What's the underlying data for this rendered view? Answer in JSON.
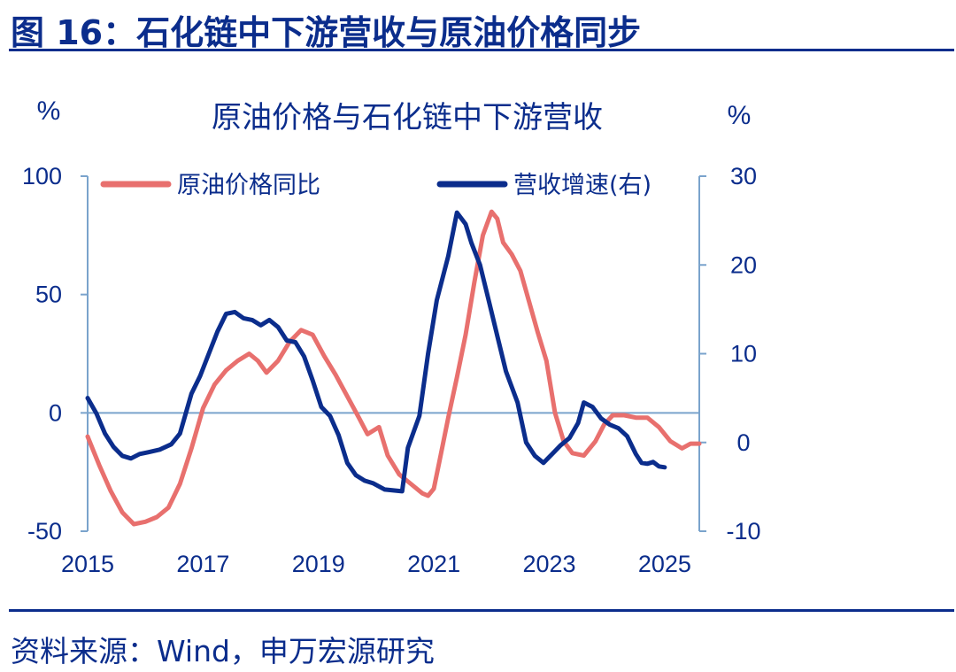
{
  "figure_title": "图 16：石化链中下游营收与原油价格同步",
  "source_note": "资料来源：Wind，申万宏源研究",
  "chart_data": {
    "type": "line",
    "title": "原油价格与石化链中下游营收",
    "left_unit": "%",
    "right_unit": "%",
    "x_ticks": [
      "2015",
      "2017",
      "2019",
      "2021",
      "2023",
      "2025"
    ],
    "y_left": {
      "ticks": [
        "100",
        "50",
        "0",
        "-50"
      ],
      "range": [
        -50,
        100
      ]
    },
    "y_right": {
      "ticks": [
        "30",
        "20",
        "10",
        "0",
        "-10"
      ],
      "range": [
        -10,
        30
      ]
    },
    "x_range": [
      2015.0,
      2025.6
    ],
    "grid": false,
    "legend_position": "top",
    "series": [
      {
        "name": "原油价格同比",
        "axis": "left",
        "color": "#e8706e",
        "points": [
          [
            2015.0,
            -10
          ],
          [
            2015.2,
            -22
          ],
          [
            2015.4,
            -33
          ],
          [
            2015.6,
            -42
          ],
          [
            2015.8,
            -47
          ],
          [
            2016.0,
            -46
          ],
          [
            2016.2,
            -44
          ],
          [
            2016.4,
            -40
          ],
          [
            2016.6,
            -30
          ],
          [
            2016.8,
            -15
          ],
          [
            2017.0,
            2
          ],
          [
            2017.2,
            12
          ],
          [
            2017.4,
            18
          ],
          [
            2017.6,
            22
          ],
          [
            2017.8,
            25
          ],
          [
            2017.95,
            22
          ],
          [
            2018.1,
            17
          ],
          [
            2018.3,
            22
          ],
          [
            2018.5,
            30
          ],
          [
            2018.7,
            35
          ],
          [
            2018.9,
            33
          ],
          [
            2019.1,
            24
          ],
          [
            2019.3,
            16
          ],
          [
            2019.5,
            7
          ],
          [
            2019.7,
            -2
          ],
          [
            2019.85,
            -9
          ],
          [
            2020.05,
            -6
          ],
          [
            2020.2,
            -18
          ],
          [
            2020.4,
            -26
          ],
          [
            2020.6,
            -30
          ],
          [
            2020.8,
            -34
          ],
          [
            2020.9,
            -35
          ],
          [
            2021.0,
            -32
          ],
          [
            2021.1,
            -20
          ],
          [
            2021.25,
            -2
          ],
          [
            2021.4,
            15
          ],
          [
            2021.55,
            33
          ],
          [
            2021.7,
            55
          ],
          [
            2021.85,
            75
          ],
          [
            2022.0,
            85
          ],
          [
            2022.1,
            82
          ],
          [
            2022.2,
            72
          ],
          [
            2022.35,
            67
          ],
          [
            2022.5,
            60
          ],
          [
            2022.65,
            47
          ],
          [
            2022.8,
            34
          ],
          [
            2022.95,
            22
          ],
          [
            2023.1,
            0
          ],
          [
            2023.25,
            -12
          ],
          [
            2023.4,
            -17
          ],
          [
            2023.6,
            -18
          ],
          [
            2023.8,
            -12
          ],
          [
            2023.95,
            -5
          ],
          [
            2024.1,
            -1
          ],
          [
            2024.3,
            -1
          ],
          [
            2024.5,
            -2
          ],
          [
            2024.7,
            -2
          ],
          [
            2024.9,
            -6
          ],
          [
            2025.1,
            -12
          ],
          [
            2025.3,
            -15
          ],
          [
            2025.45,
            -13
          ],
          [
            2025.6,
            -13
          ]
        ]
      },
      {
        "name": "营收增速(右)",
        "axis": "right",
        "color": "#0b2d8c",
        "points": [
          [
            2015.0,
            5
          ],
          [
            2015.15,
            3.3
          ],
          [
            2015.3,
            1
          ],
          [
            2015.45,
            -0.5
          ],
          [
            2015.6,
            -1.5
          ],
          [
            2015.75,
            -1.8
          ],
          [
            2015.9,
            -1.3
          ],
          [
            2016.05,
            -1.1
          ],
          [
            2016.25,
            -0.8
          ],
          [
            2016.45,
            -0.2
          ],
          [
            2016.6,
            1
          ],
          [
            2016.8,
            5.5
          ],
          [
            2016.95,
            7.5
          ],
          [
            2017.1,
            10
          ],
          [
            2017.25,
            12.5
          ],
          [
            2017.4,
            14.5
          ],
          [
            2017.55,
            14.7
          ],
          [
            2017.7,
            14
          ],
          [
            2017.85,
            13.8
          ],
          [
            2018.0,
            13.2
          ],
          [
            2018.15,
            13.8
          ],
          [
            2018.3,
            13
          ],
          [
            2018.45,
            11.5
          ],
          [
            2018.6,
            11.3
          ],
          [
            2018.75,
            9.7
          ],
          [
            2018.9,
            7
          ],
          [
            2019.05,
            4
          ],
          [
            2019.2,
            3
          ],
          [
            2019.35,
            0.8
          ],
          [
            2019.5,
            -2.3
          ],
          [
            2019.65,
            -3.7
          ],
          [
            2019.8,
            -4.3
          ],
          [
            2019.95,
            -4.6
          ],
          [
            2020.15,
            -5.3
          ],
          [
            2020.3,
            -5.4
          ],
          [
            2020.45,
            -5.5
          ],
          [
            2020.55,
            -0.6
          ],
          [
            2020.75,
            3
          ],
          [
            2020.9,
            10
          ],
          [
            2021.05,
            16
          ],
          [
            2021.25,
            21
          ],
          [
            2021.4,
            25.9
          ],
          [
            2021.55,
            24.6
          ],
          [
            2021.65,
            22.5
          ],
          [
            2021.8,
            20
          ],
          [
            2021.95,
            16
          ],
          [
            2022.1,
            12
          ],
          [
            2022.25,
            8
          ],
          [
            2022.45,
            4.5
          ],
          [
            2022.6,
            0
          ],
          [
            2022.75,
            -1.5
          ],
          [
            2022.9,
            -2.3
          ],
          [
            2023.05,
            -1.3
          ],
          [
            2023.2,
            -0.3
          ],
          [
            2023.35,
            0.5
          ],
          [
            2023.5,
            2.2
          ],
          [
            2023.6,
            4.5
          ],
          [
            2023.75,
            4
          ],
          [
            2023.9,
            2.7
          ],
          [
            2024.05,
            2
          ],
          [
            2024.2,
            1.6
          ],
          [
            2024.35,
            0.7
          ],
          [
            2024.5,
            -1.3
          ],
          [
            2024.6,
            -2.3
          ],
          [
            2024.7,
            -2.4
          ],
          [
            2024.8,
            -2.2
          ],
          [
            2024.9,
            -2.7
          ],
          [
            2025.0,
            -2.8
          ]
        ]
      }
    ]
  }
}
